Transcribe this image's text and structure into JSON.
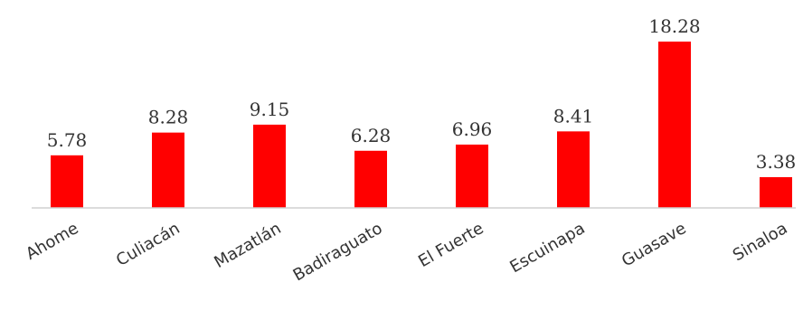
{
  "chart_data": {
    "type": "bar",
    "categories": [
      "Ahome",
      "Culiacán",
      "Mazatlán",
      "Badiraguato",
      "El Fuerte",
      "Escuinapa",
      "Guasave",
      "Sinaloa"
    ],
    "values": [
      5.78,
      8.28,
      9.15,
      6.28,
      6.96,
      8.41,
      18.28,
      3.38
    ],
    "value_labels": [
      "5.78",
      "8.28",
      "9.15",
      "6.28",
      "6.96",
      "8.41",
      "18.28",
      "3.38"
    ],
    "bar_color": "#ff0000",
    "axis_color": "#d0d0d0",
    "ylim": [
      0,
      18.28
    ],
    "grid": false,
    "legend": "none"
  }
}
